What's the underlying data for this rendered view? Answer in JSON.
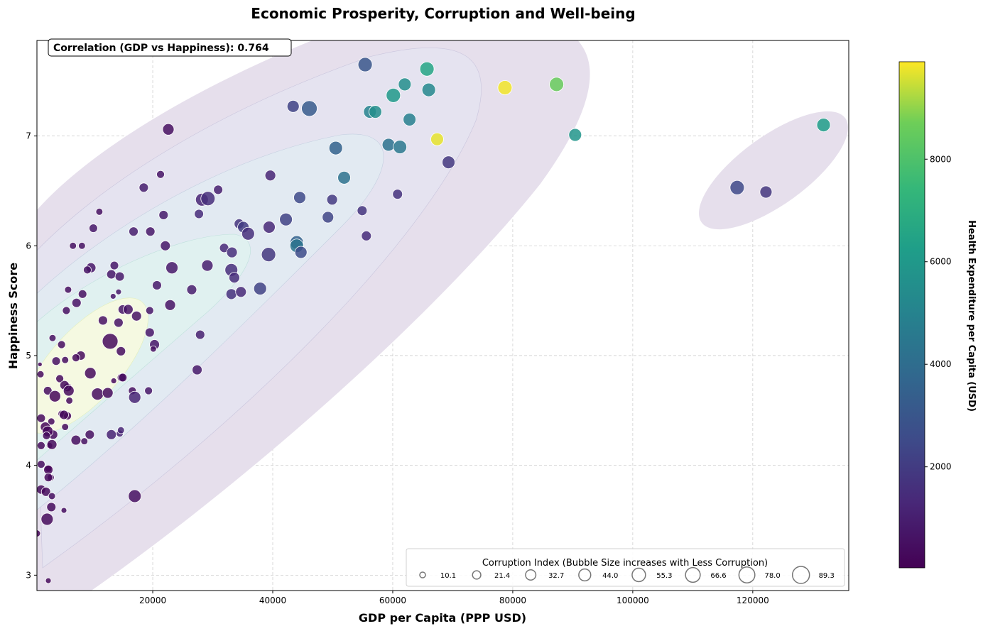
{
  "chart_data": {
    "type": "scatter",
    "title": "Economic Prosperity, Corruption and Well-being",
    "xlabel": "GDP per Capita (PPP USD)",
    "ylabel": "Happiness Score",
    "xlim": [
      700,
      136000
    ],
    "ylim": [
      2.86,
      7.87
    ],
    "xticks": [
      20000,
      40000,
      60000,
      80000,
      100000,
      120000
    ],
    "yticks": [
      3,
      4,
      5,
      6,
      7
    ],
    "grid": true,
    "annotation": "Correlation (GDP vs Happiness): 0.764",
    "colorbar": {
      "label": "Health Expenditure per Capita (USD)",
      "range": [
        30,
        9900
      ],
      "ticks": [
        2000,
        4000,
        6000,
        8000
      ],
      "colormap": "viridis"
    },
    "size_legend": {
      "title": "Corruption Index (Bubble Size increases with Less Corruption)",
      "values": [
        "10.1",
        "21.4",
        "32.7",
        "44.0",
        "55.3",
        "66.6",
        "78.0",
        "89.3"
      ],
      "placement": "lower-right"
    },
    "density_contours": true,
    "point_fields": [
      "gdp_per_capita",
      "happiness",
      "corruption_index",
      "health_expenditure"
    ],
    "points": [
      [
        55400,
        7.65,
        62,
        3000
      ],
      [
        65700,
        7.61,
        62,
        6500
      ],
      [
        62000,
        7.47,
        50,
        5500
      ],
      [
        87300,
        7.47,
        62,
        8500
      ],
      [
        78700,
        7.44,
        62,
        9800
      ],
      [
        66000,
        7.42,
        56,
        5200
      ],
      [
        60100,
        7.37,
        62,
        6000
      ],
      [
        46100,
        7.25,
        75,
        3200
      ],
      [
        43400,
        7.27,
        45,
        2200
      ],
      [
        56200,
        7.22,
        50,
        5000
      ],
      [
        57100,
        7.22,
        50,
        5500
      ],
      [
        62800,
        7.15,
        50,
        4800
      ],
      [
        22600,
        7.06,
        40,
        500
      ],
      [
        67400,
        6.97,
        50,
        9700
      ],
      [
        90400,
        7.01,
        50,
        5800
      ],
      [
        131800,
        7.1,
        56,
        6200
      ],
      [
        59300,
        6.92,
        50,
        4200
      ],
      [
        61200,
        6.9,
        56,
        4500
      ],
      [
        50500,
        6.89,
        56,
        3500
      ],
      [
        51900,
        6.62,
        50,
        4200
      ],
      [
        69300,
        6.76,
        50,
        1800
      ],
      [
        117400,
        6.53,
        62,
        2500
      ],
      [
        122200,
        6.49,
        45,
        1800
      ],
      [
        60800,
        6.47,
        30,
        1600
      ],
      [
        39600,
        6.64,
        35,
        1200
      ],
      [
        21300,
        6.65,
        19,
        600
      ],
      [
        18500,
        6.53,
        26,
        900
      ],
      [
        30900,
        6.51,
        26,
        1000
      ],
      [
        28200,
        6.42,
        50,
        1200
      ],
      [
        29200,
        6.43,
        62,
        1500
      ],
      [
        44500,
        6.44,
        45,
        2500
      ],
      [
        49900,
        6.42,
        35,
        1900
      ],
      [
        11100,
        6.31,
        15,
        500
      ],
      [
        21800,
        6.28,
        26,
        800
      ],
      [
        27700,
        6.29,
        26,
        1400
      ],
      [
        54900,
        6.32,
        30,
        1700
      ],
      [
        42200,
        6.24,
        50,
        2200
      ],
      [
        49200,
        6.26,
        40,
        2300
      ],
      [
        34400,
        6.2,
        30,
        1700
      ],
      [
        35100,
        6.17,
        40,
        2000
      ],
      [
        35900,
        6.11,
        50,
        1500
      ],
      [
        39400,
        6.17,
        45,
        1300
      ],
      [
        10100,
        6.16,
        22,
        700
      ],
      [
        16800,
        6.13,
        26,
        900
      ],
      [
        19600,
        6.13,
        26,
        700
      ],
      [
        55600,
        6.09,
        30,
        1400
      ],
      [
        44000,
        6.03,
        56,
        3500
      ],
      [
        44000,
        6.0,
        56,
        4300
      ],
      [
        44700,
        5.94,
        45,
        2600
      ],
      [
        22100,
        6.0,
        30,
        700
      ],
      [
        6700,
        6.0,
        15,
        500
      ],
      [
        8200,
        6.0,
        15,
        500
      ],
      [
        31900,
        5.98,
        26,
        1300
      ],
      [
        33200,
        5.94,
        35,
        1500
      ],
      [
        39300,
        5.92,
        62,
        1800
      ],
      [
        13600,
        5.82,
        22,
        700
      ],
      [
        9700,
        5.8,
        30,
        700
      ],
      [
        9100,
        5.78,
        19,
        600
      ],
      [
        23200,
        5.8,
        45,
        800
      ],
      [
        29100,
        5.82,
        40,
        900
      ],
      [
        33100,
        5.78,
        50,
        1500
      ],
      [
        13100,
        5.74,
        26,
        700
      ],
      [
        14500,
        5.72,
        26,
        800
      ],
      [
        33600,
        5.71,
        35,
        1400
      ],
      [
        37900,
        5.61,
        50,
        2200
      ],
      [
        5900,
        5.6,
        15,
        400
      ],
      [
        26500,
        5.6,
        30,
        900
      ],
      [
        20700,
        5.64,
        26,
        800
      ],
      [
        33100,
        5.56,
        35,
        1600
      ],
      [
        34700,
        5.58,
        35,
        1300
      ],
      [
        8300,
        5.56,
        22,
        500
      ],
      [
        14300,
        5.58,
        10,
        800
      ],
      [
        13400,
        5.54,
        10,
        700
      ],
      [
        7300,
        5.48,
        26,
        600
      ],
      [
        22900,
        5.46,
        35,
        600
      ],
      [
        15000,
        5.42,
        26,
        700
      ],
      [
        15900,
        5.42,
        30,
        600
      ],
      [
        5600,
        5.41,
        19,
        500
      ],
      [
        19500,
        5.41,
        19,
        700
      ],
      [
        11700,
        5.32,
        26,
        500
      ],
      [
        17300,
        5.36,
        30,
        600
      ],
      [
        14300,
        5.3,
        26,
        600
      ],
      [
        19500,
        5.21,
        26,
        700
      ],
      [
        27900,
        5.19,
        26,
        1000
      ],
      [
        3300,
        5.16,
        15,
        500
      ],
      [
        20300,
        5.1,
        30,
        700
      ],
      [
        4800,
        5.1,
        19,
        400
      ],
      [
        20100,
        5.06,
        12,
        500
      ],
      [
        12900,
        5.13,
        75,
        300
      ],
      [
        14700,
        5.04,
        26,
        400
      ],
      [
        8000,
        5.0,
        26,
        300
      ],
      [
        7200,
        4.98,
        19,
        300
      ],
      [
        5400,
        4.96,
        15,
        400
      ],
      [
        3900,
        4.95,
        22,
        500
      ],
      [
        1200,
        4.92,
        6,
        200
      ],
      [
        1300,
        4.83,
        15,
        300
      ],
      [
        9600,
        4.84,
        40,
        300
      ],
      [
        4500,
        4.79,
        19,
        300
      ],
      [
        14800,
        4.8,
        22,
        300
      ],
      [
        15000,
        4.8,
        22,
        400
      ],
      [
        13500,
        4.77,
        10,
        300
      ],
      [
        27400,
        4.87,
        30,
        800
      ],
      [
        5800,
        4.71,
        22,
        200
      ],
      [
        5300,
        4.73,
        26,
        300
      ],
      [
        6000,
        4.68,
        35,
        300
      ],
      [
        2500,
        4.68,
        22,
        400
      ],
      [
        10800,
        4.65,
        45,
        400
      ],
      [
        12500,
        4.66,
        35,
        300
      ],
      [
        16600,
        4.68,
        19,
        500
      ],
      [
        19300,
        4.68,
        19,
        700
      ],
      [
        17000,
        4.62,
        45,
        1200
      ],
      [
        3700,
        4.63,
        40,
        200
      ],
      [
        6100,
        4.59,
        15,
        300
      ],
      [
        4800,
        4.47,
        15,
        300
      ],
      [
        5800,
        4.45,
        19,
        200
      ],
      [
        5200,
        4.46,
        26,
        300
      ],
      [
        3100,
        4.4,
        15,
        300
      ],
      [
        1400,
        4.43,
        22,
        300
      ],
      [
        2100,
        4.35,
        30,
        200
      ],
      [
        5400,
        4.35,
        15,
        300
      ],
      [
        3400,
        4.28,
        26,
        300
      ],
      [
        2500,
        4.31,
        35,
        200
      ],
      [
        2300,
        4.27,
        19,
        300
      ],
      [
        13100,
        4.28,
        30,
        1100
      ],
      [
        14500,
        4.29,
        15,
        1100
      ],
      [
        14700,
        4.32,
        15,
        1200
      ],
      [
        9500,
        4.28,
        26,
        500
      ],
      [
        7200,
        4.23,
        30,
        400
      ],
      [
        8600,
        4.22,
        15,
        500
      ],
      [
        1400,
        4.18,
        19,
        300
      ],
      [
        2800,
        4.18,
        12,
        300
      ],
      [
        3200,
        4.19,
        30,
        300
      ],
      [
        1400,
        4.01,
        19,
        400
      ],
      [
        2600,
        3.97,
        15,
        300
      ],
      [
        2600,
        3.96,
        26,
        200
      ],
      [
        3000,
        3.89,
        15,
        300
      ],
      [
        2600,
        3.89,
        22,
        300
      ],
      [
        1400,
        3.78,
        26,
        300
      ],
      [
        2200,
        3.76,
        26,
        300
      ],
      [
        3200,
        3.72,
        15,
        400
      ],
      [
        17000,
        3.72,
        50,
        500
      ],
      [
        3100,
        3.62,
        26,
        300
      ],
      [
        5200,
        3.59,
        10,
        400
      ],
      [
        2400,
        3.51,
        45,
        300
      ],
      [
        700,
        3.38,
        15,
        200
      ],
      [
        2600,
        2.95,
        10,
        300
      ]
    ]
  }
}
